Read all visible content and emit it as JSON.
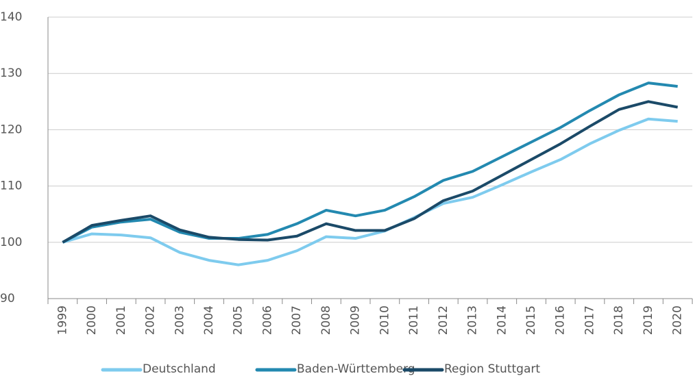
{
  "chart_data": {
    "type": "line",
    "categories": [
      "1999",
      "2000",
      "2001",
      "2002",
      "2003",
      "2004",
      "2005",
      "2006",
      "2007",
      "2008",
      "2009",
      "2010",
      "2011",
      "2012",
      "2013",
      "2014",
      "2015",
      "2016",
      "2017",
      "2018",
      "2019",
      "2020"
    ],
    "series": [
      {
        "name": "Deutschland",
        "color": "#7ecbee",
        "values": [
          100,
          101.5,
          101.3,
          100.8,
          98.2,
          96.8,
          96.0,
          96.8,
          98.5,
          101.0,
          100.7,
          102.0,
          104.4,
          106.9,
          108.0,
          110.2,
          112.5,
          114.7,
          117.5,
          119.9,
          121.9,
          121.5
        ]
      },
      {
        "name": "Baden-Württemberg",
        "color": "#2389b0",
        "values": [
          100,
          102.7,
          103.6,
          104.1,
          101.8,
          100.7,
          100.7,
          101.4,
          103.3,
          105.7,
          104.7,
          105.7,
          108.1,
          111.0,
          112.6,
          115.2,
          117.8,
          120.4,
          123.4,
          126.2,
          128.3,
          127.7
        ]
      },
      {
        "name": "Region Stuttgart",
        "color": "#1b4a68",
        "values": [
          100,
          103.0,
          103.9,
          104.7,
          102.2,
          100.9,
          100.5,
          100.4,
          101.1,
          103.3,
          102.1,
          102.1,
          104.2,
          107.4,
          109.1,
          111.9,
          114.7,
          117.5,
          120.6,
          123.6,
          125.0,
          124.0
        ]
      }
    ],
    "ylim": [
      90,
      140
    ],
    "yticks": [
      90,
      100,
      110,
      120,
      130,
      140
    ],
    "grid": true,
    "legend": "bottom"
  }
}
